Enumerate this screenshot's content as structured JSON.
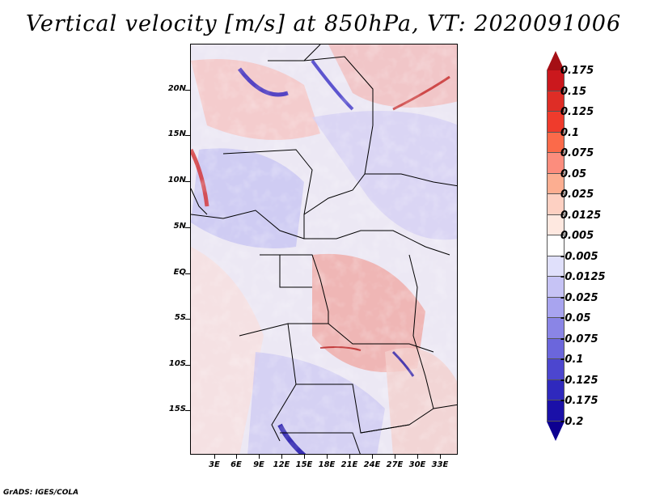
{
  "title": "Vertical velocity [m/s] at 850hPa, VT: 2020091006",
  "credit": "GrADS: IGES/COLA",
  "lat_labels": [
    "20N",
    "15N",
    "10N",
    "5N",
    "EQ",
    "5S",
    "10S",
    "15S"
  ],
  "lon_labels": [
    "3E",
    "6E",
    "9E",
    "12E",
    "15E",
    "18E",
    "21E",
    "24E",
    "27E",
    "30E",
    "33E"
  ],
  "colorbar": {
    "labels": [
      "0.175",
      "0.15",
      "0.125",
      "0.1",
      "0.075",
      "0.05",
      "0.025",
      "0.0125",
      "0.005",
      "-0.005",
      "-0.0125",
      "-0.025",
      "-0.05",
      "-0.075",
      "-0.1",
      "-0.125",
      "-0.175",
      "-0.2"
    ],
    "colors": [
      "#a50f15",
      "#cb181d",
      "#de2d26",
      "#ef3b2c",
      "#fb6a4a",
      "#fc8d7d",
      "#fcae91",
      "#fdd0c2",
      "#fee8e0",
      "#ffffff",
      "#e0e0fb",
      "#c6c3f5",
      "#a8a4ef",
      "#8a85e6",
      "#6b66dc",
      "#4c46cf",
      "#2f29bd",
      "#1a10a8",
      "#0d0090"
    ]
  }
}
